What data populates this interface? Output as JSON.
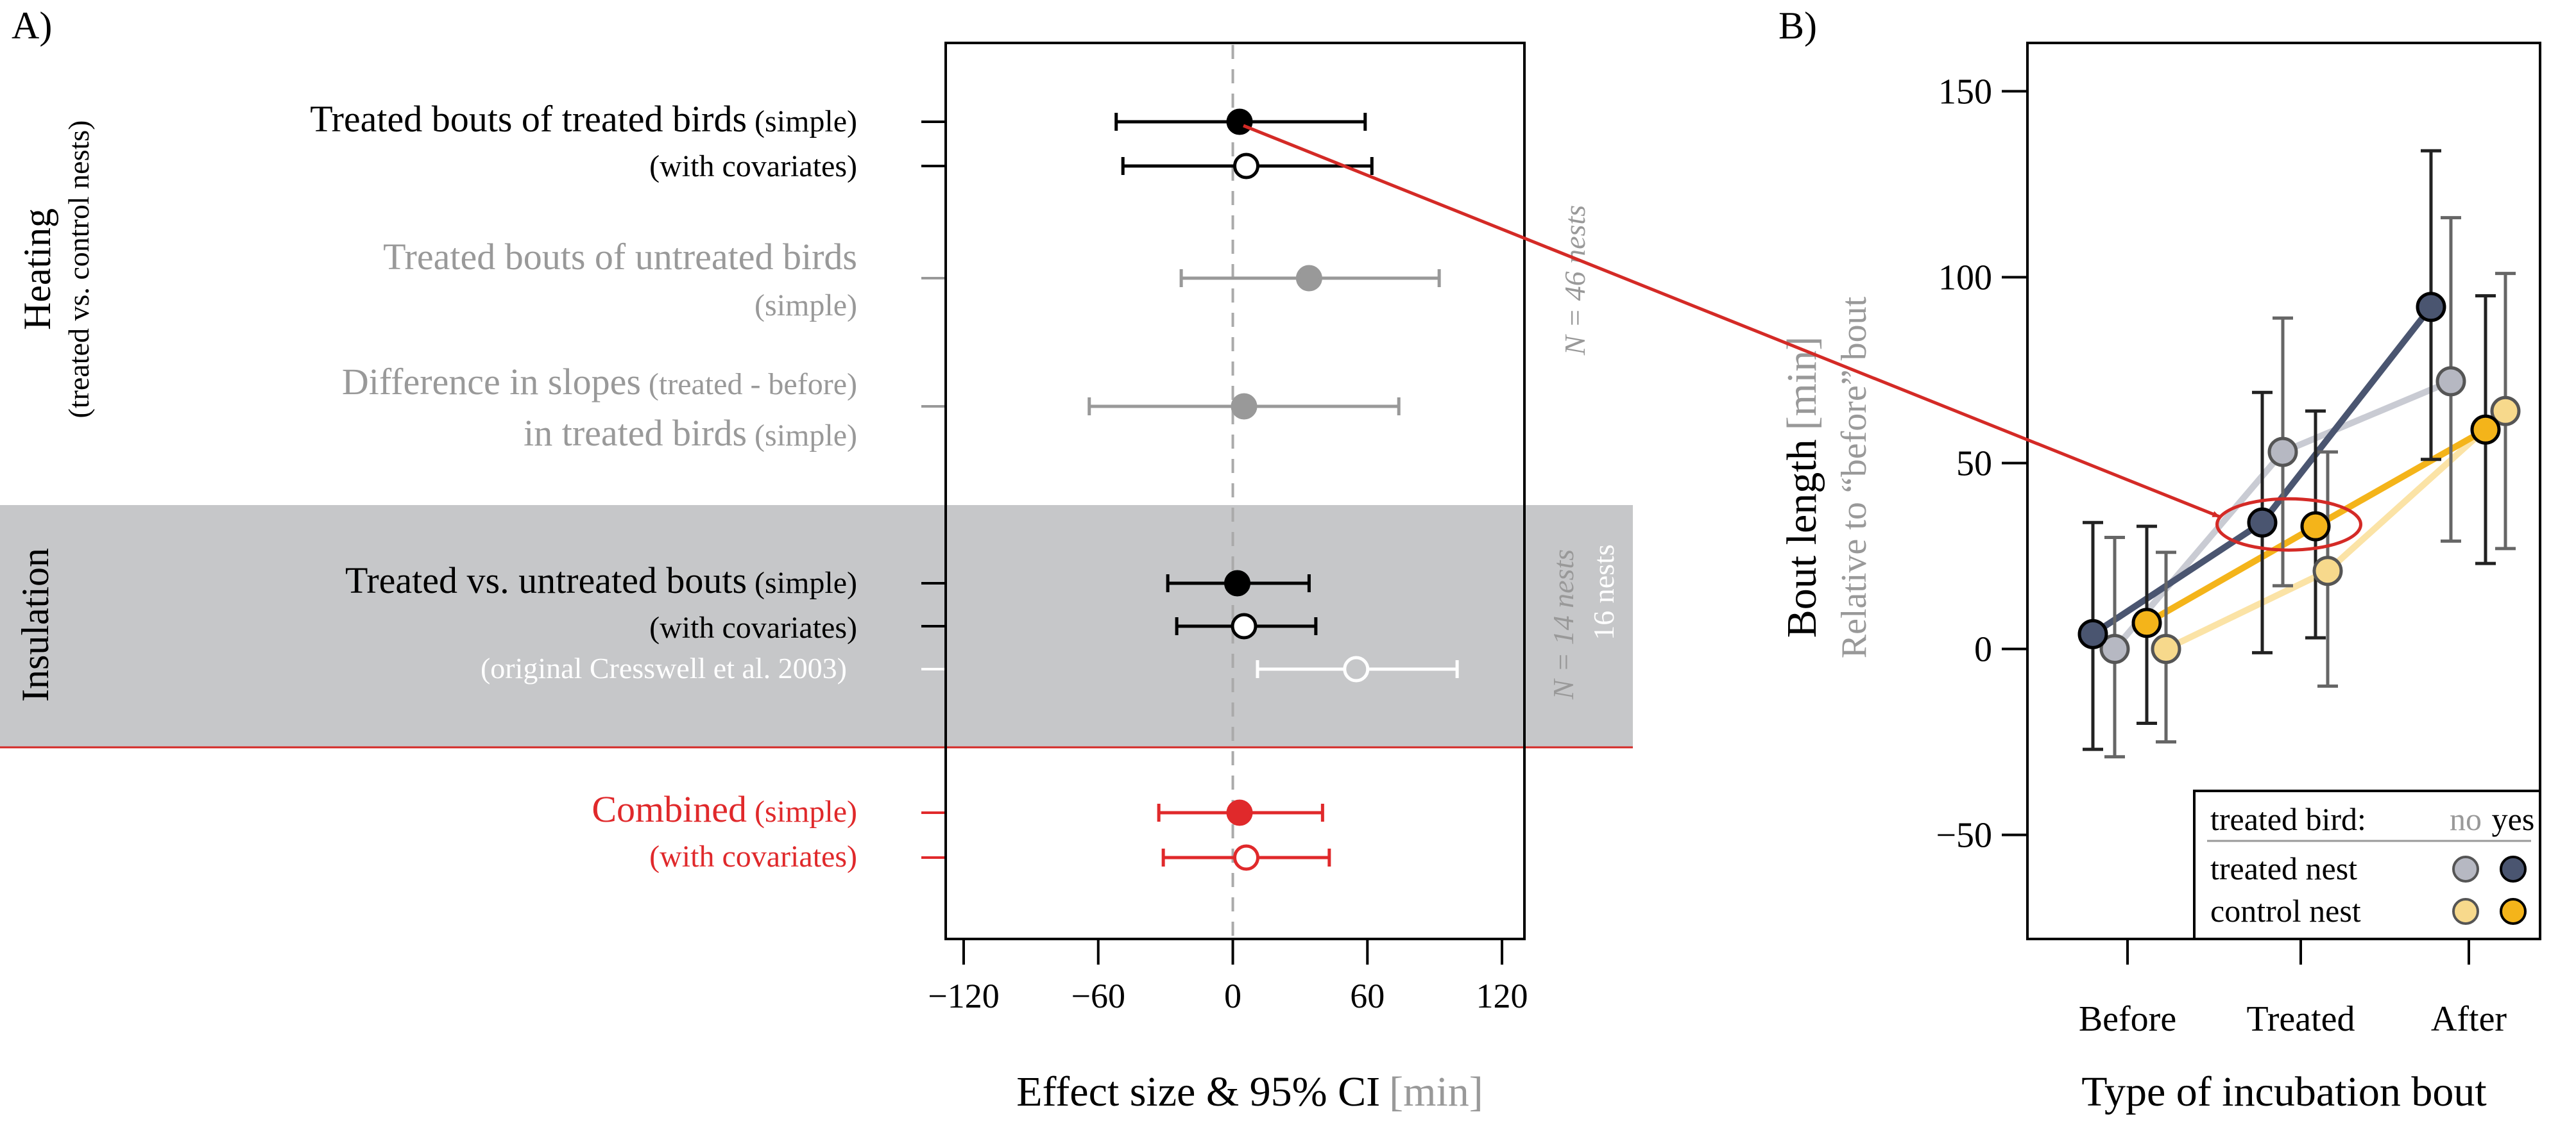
{
  "chart_data": [
    {
      "type": "forest",
      "panel_label": "A)",
      "xlabel": "Effect size & 95% CI",
      "xlabel_unit": "[min]",
      "xlim": [
        -128,
        130
      ],
      "xticks": [
        -120,
        -60,
        0,
        60,
        120
      ],
      "xtick_labels": [
        "−120",
        "−60",
        "0",
        "60",
        "120"
      ],
      "reference_line": 0,
      "groups": [
        {
          "label": "Heating",
          "sublabel": "(treated vs. control nests)",
          "shaded": false,
          "n_label": "N = 46 nests"
        },
        {
          "label": "Insulation",
          "shaded": true,
          "n_label": "N = 14 nests",
          "n_label2": "16 nests"
        }
      ],
      "rows": [
        {
          "main": "Treated bouts of treated birds",
          "note": " (simple)",
          "estimate": 3,
          "lower": -52,
          "upper": 59,
          "filled": true,
          "color": "#000000"
        },
        {
          "main": "",
          "note": "(with covariates)",
          "estimate": 6,
          "lower": -49,
          "upper": 62,
          "filled": false,
          "color": "#000000"
        },
        {
          "main": "Treated bouts of untreated birds",
          "note": "",
          "estimate": 34,
          "lower": -23,
          "upper": 92,
          "filled": true,
          "color": "#999999"
        },
        {
          "main": "",
          "note": "(simple)",
          "estimate": null,
          "lower": null,
          "upper": null,
          "filled": true,
          "color": "#999999"
        },
        {
          "main": "Difference in slopes",
          "note": " (treated - before)",
          "estimate": 5,
          "lower": -64,
          "upper": 74,
          "filled": true,
          "color": "#999999"
        },
        {
          "main": "in treated birds",
          "note": " (simple)",
          "estimate": null,
          "lower": null,
          "upper": null,
          "filled": true,
          "color": "#999999"
        },
        {
          "main": "Treated vs. untreated bouts",
          "note": " (simple)",
          "estimate": 2,
          "lower": -29,
          "upper": 34,
          "filled": true,
          "color": "#000000"
        },
        {
          "main": "",
          "note": "(with covariates)",
          "estimate": 5,
          "lower": -25,
          "upper": 37,
          "filled": false,
          "color": "#000000"
        },
        {
          "main": "",
          "note": "(original Cresswell et al. 2003)",
          "estimate": 55,
          "lower": 11,
          "upper": 100,
          "filled": false,
          "color": "#ffffff"
        },
        {
          "main": "Combined",
          "note": " (simple)",
          "estimate": 3,
          "lower": -33,
          "upper": 40,
          "filled": true,
          "color": "#e0292b"
        },
        {
          "main": "",
          "note": "(with covariates)",
          "estimate": 6,
          "lower": -31,
          "upper": 43,
          "filled": false,
          "color": "#e0292b"
        }
      ]
    },
    {
      "type": "line",
      "panel_label": "B)",
      "xlabel": "Type of incubation bout",
      "ylabel": "Bout length",
      "ylabel_unit": "[min]",
      "ylabel2": "Relative to “before” bout",
      "categories": [
        "Before",
        "Treated",
        "After"
      ],
      "ylim": [
        -78,
        163
      ],
      "yticks": [
        -50,
        0,
        50,
        100,
        150
      ],
      "ytick_labels": [
        "−50",
        "0",
        "50",
        "100",
        "150"
      ],
      "series": [
        {
          "values": [
            0,
            53,
            72
          ],
          "lower": [
            -29,
            17,
            29
          ],
          "upper": [
            30,
            89,
            116
          ],
          "color": "#b6b8c2",
          "line_color": "#c9cbd3"
        },
        {
          "values": [
            0,
            21,
            64
          ],
          "lower": [
            -25,
            -10,
            27
          ],
          "upper": [
            26,
            53,
            101
          ],
          "color": "#f7d98c",
          "line_color": "#fbe3a6"
        },
        {
          "values": [
            4,
            34,
            92
          ],
          "lower": [
            -27,
            -1,
            51
          ],
          "upper": [
            34,
            69,
            134
          ],
          "color": "#4a5570",
          "line_color": "#4a5570"
        },
        {
          "values": [
            7,
            33,
            59
          ],
          "lower": [
            -20,
            3,
            23
          ],
          "upper": [
            33,
            64,
            95
          ],
          "color": "#f4b41a",
          "line_color": "#f4b41a"
        }
      ],
      "legend": {
        "title": "treated bird:",
        "col_no": "no",
        "col_yes": "yes",
        "rows": [
          "treated nest",
          "control nest"
        ],
        "placement": "bottom-right"
      }
    }
  ]
}
